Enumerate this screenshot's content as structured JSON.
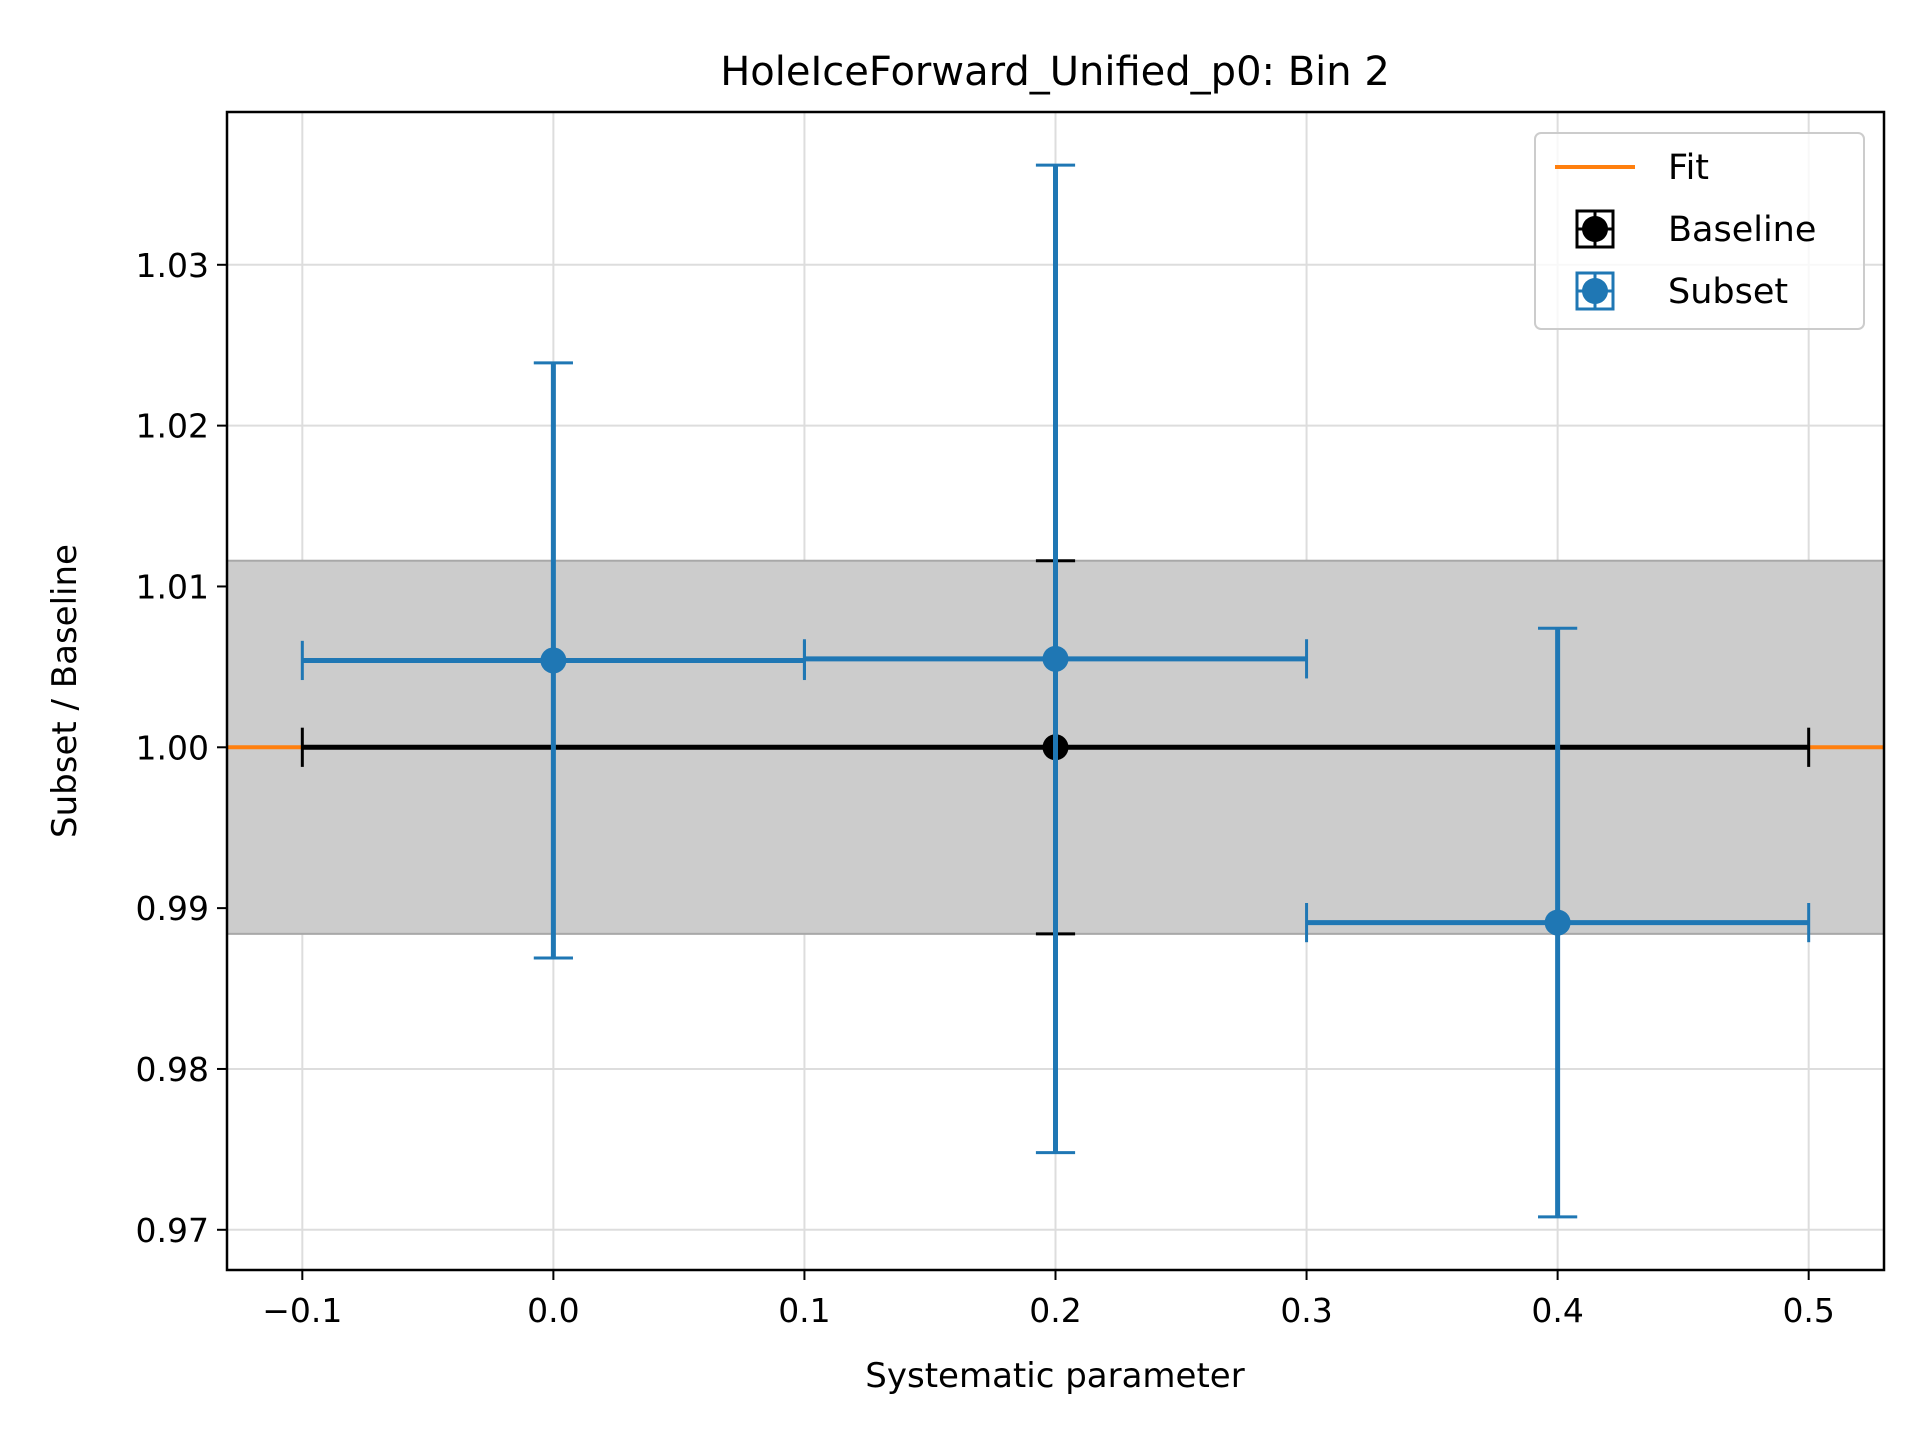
{
  "chart_data": {
    "type": "scatter",
    "title": "HoleIceForward_Unified_p0: Bin 2",
    "xlabel": "Systematic parameter",
    "ylabel": "Subset / Baseline",
    "xlim": [
      -0.13,
      0.53
    ],
    "ylim": [
      0.9675,
      1.0395
    ],
    "xticks": [
      -0.1,
      0.0,
      0.1,
      0.2,
      0.3,
      0.4,
      0.5
    ],
    "xtick_labels": [
      "−0.1",
      "0.0",
      "0.1",
      "0.2",
      "0.3",
      "0.4",
      "0.5"
    ],
    "yticks": [
      0.97,
      0.98,
      0.99,
      1.0,
      1.01,
      1.02,
      1.03
    ],
    "ytick_labels": [
      "0.97",
      "0.98",
      "0.99",
      "1.00",
      "1.01",
      "1.02",
      "1.03"
    ],
    "grid": true,
    "legend_position": "top-right",
    "band": {
      "y_low": 0.9884,
      "y_high": 1.0116,
      "color": "#cccccc"
    },
    "series": [
      {
        "name": "Fit",
        "kind": "line",
        "color": "#ff7f0e",
        "x": [
          -0.13,
          0.53
        ],
        "y": [
          1.0,
          1.0
        ]
      },
      {
        "name": "Baseline",
        "kind": "errorbar",
        "color": "#000000",
        "points": [
          {
            "x": 0.2,
            "y": 1.0,
            "xerr": 0.3,
            "yerr": 0.0116
          }
        ]
      },
      {
        "name": "Subset",
        "kind": "errorbar",
        "color": "#1f77b4",
        "points": [
          {
            "x": 0.0,
            "y": 1.0054,
            "xerr": 0.1,
            "yerr": 0.0185
          },
          {
            "x": 0.2,
            "y": 1.0055,
            "xerr": 0.1,
            "yerr": 0.0307
          },
          {
            "x": 0.4,
            "y": 0.9891,
            "xerr": 0.1,
            "yerr": 0.0183
          }
        ]
      }
    ]
  }
}
